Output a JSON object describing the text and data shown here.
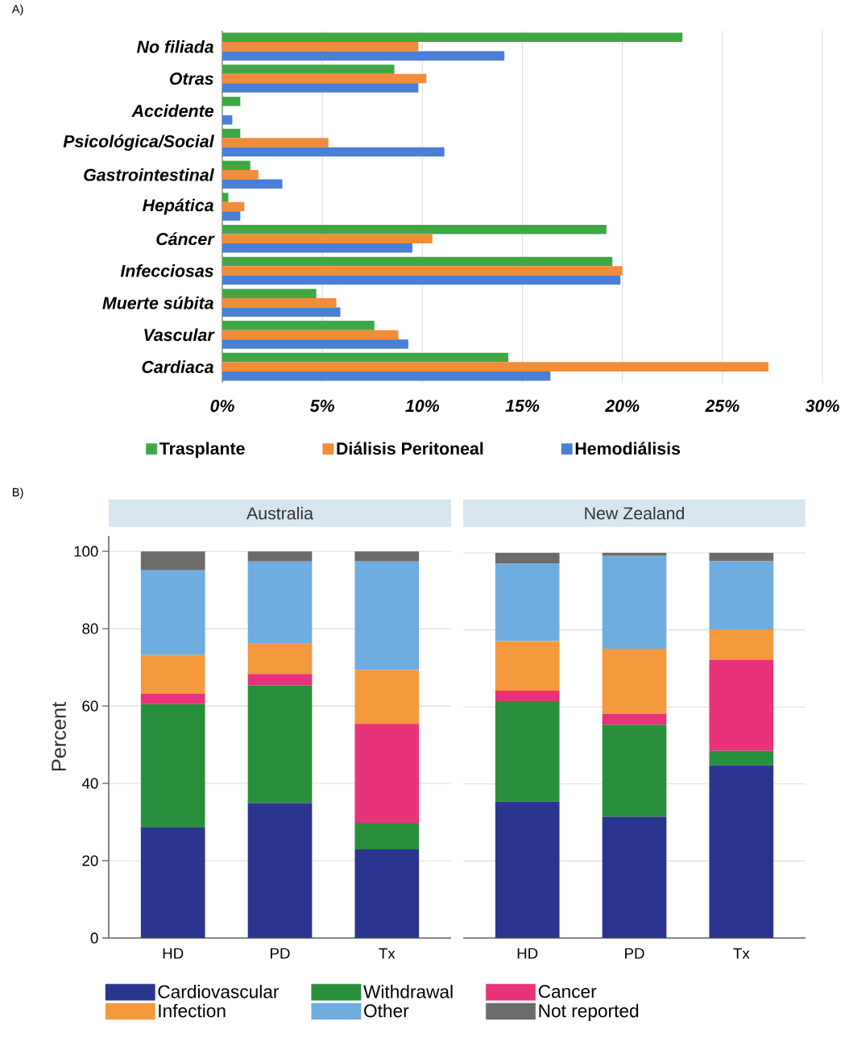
{
  "chart_data": [
    {
      "type": "bar",
      "orientation": "horizontal",
      "title": "A)",
      "categories": [
        "No filiada",
        "Otras",
        "Accidente",
        "Psicológica/Social",
        "Gastrointestinal",
        "Hepática",
        "Cáncer",
        "Infecciosas",
        "Muerte súbita",
        "Vascular",
        "Cardiaca"
      ],
      "series": [
        {
          "name": "Trasplante",
          "color": "#3fa845",
          "values": [
            23.0,
            8.6,
            0.9,
            0.9,
            1.4,
            0.3,
            19.2,
            19.5,
            4.7,
            7.6,
            14.3
          ]
        },
        {
          "name": "Diálisis Peritoneal",
          "color": "#f28c38",
          "values": [
            9.8,
            10.2,
            0,
            5.3,
            1.8,
            1.1,
            10.5,
            20.0,
            5.7,
            8.8,
            27.3
          ]
        },
        {
          "name": "Hemodiálisis",
          "color": "#4a7fd4",
          "values": [
            14.1,
            9.8,
            0.5,
            11.1,
            3.0,
            0.9,
            9.5,
            19.9,
            5.9,
            9.3,
            16.4
          ]
        }
      ],
      "xlim": [
        0,
        30
      ],
      "xticks": [
        {
          "value": 0,
          "label": "0%"
        },
        {
          "value": 5,
          "label": "5%"
        },
        {
          "value": 10,
          "label": "10%"
        },
        {
          "value": 15,
          "label": "15%"
        },
        {
          "value": 20,
          "label": "20%"
        },
        {
          "value": 25,
          "label": "25%"
        },
        {
          "value": 30,
          "label": "30%"
        }
      ],
      "grid": "x",
      "legend": "bottom"
    },
    {
      "type": "bar",
      "stacked": true,
      "title": "Australia",
      "annotations": [
        "B)"
      ],
      "ylabel": "Percent",
      "categories": [
        "HD",
        "PD",
        "Tx"
      ],
      "series": [
        {
          "name": "Cardiovascular",
          "color": "#2b358f",
          "values": [
            28.7,
            34.9,
            22.9
          ]
        },
        {
          "name": "Withdrawal",
          "color": "#2a8f3c",
          "values": [
            31.8,
            30.4,
            6.9
          ]
        },
        {
          "name": "Cancer",
          "color": "#e8327a",
          "values": [
            2.7,
            3.0,
            25.6
          ]
        },
        {
          "name": "Infection",
          "color": "#f5993d",
          "values": [
            10.0,
            8.0,
            13.9
          ]
        },
        {
          "name": "Other",
          "color": "#6fade0",
          "values": [
            21.9,
            21.1,
            28.1
          ]
        },
        {
          "name": "Not reported",
          "color": "#6b6b6b",
          "values": [
            4.9,
            2.6,
            2.6
          ]
        }
      ],
      "ylim": [
        0,
        104
      ],
      "yticks": [
        0,
        20,
        40,
        60,
        80,
        100
      ],
      "grid": "y",
      "legend": "bottom"
    },
    {
      "type": "bar",
      "stacked": true,
      "title": "New Zealand",
      "categories": [
        "HD",
        "PD",
        "Tx"
      ],
      "series": [
        {
          "color": "#2b358f",
          "values": [
            35.4,
            31.5,
            44.8
          ]
        },
        {
          "color": "#2a8f3c",
          "values": [
            26.1,
            23.9,
            3.8
          ]
        },
        {
          "color": "#e8327a",
          "values": [
            2.7,
            2.8,
            23.6
          ]
        },
        {
          "color": "#f5993d",
          "values": [
            12.9,
            16.9,
            7.9
          ]
        },
        {
          "color": "#6fade0",
          "values": [
            20.1,
            24.1,
            17.7
          ]
        },
        {
          "color": "#6b6b6b",
          "values": [
            2.8,
            0.8,
            2.2
          ]
        }
      ],
      "ylim": [
        0,
        100
      ],
      "yticks": [
        0,
        20,
        40,
        60,
        80,
        100
      ],
      "grid": "y",
      "tick_labels": "x"
    }
  ]
}
